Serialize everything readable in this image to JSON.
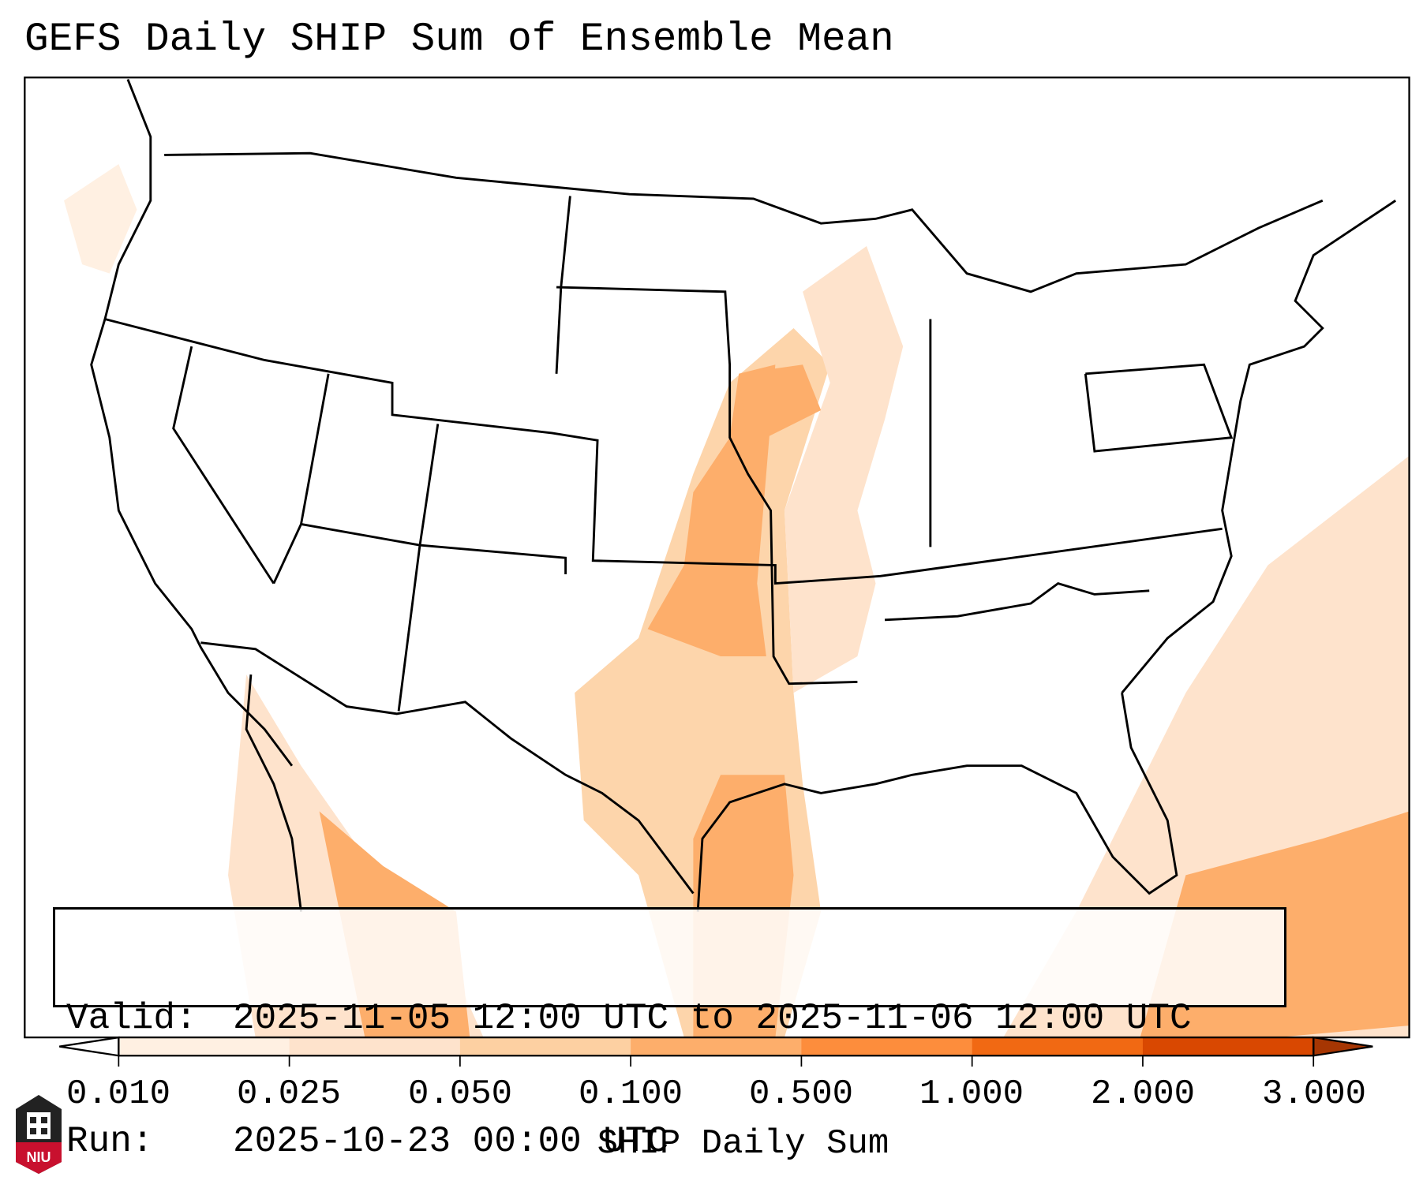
{
  "title": "GEFS Daily SHIP Sum of Ensemble Mean",
  "info": {
    "valid_label": "Valid:",
    "valid_value": "2025-11-05 12:00 UTC to 2025-11-06 12:00 UTC",
    "run_label": "Run:",
    "run_value": "2025-10-23 00:00 UTC"
  },
  "colorbar": {
    "label": "SHIP Daily Sum",
    "ticks": [
      "0.010",
      "0.025",
      "0.050",
      "0.100",
      "0.500",
      "1.000",
      "2.000",
      "3.000"
    ],
    "colors": [
      "#fff0e2",
      "#fee3cc",
      "#fdd0a2",
      "#fdae6b",
      "#fd8d3c",
      "#f16913",
      "#d94801",
      "#a63603"
    ],
    "extend_min_color": "#ffffff"
  },
  "logo": {
    "text": "NIU"
  }
}
